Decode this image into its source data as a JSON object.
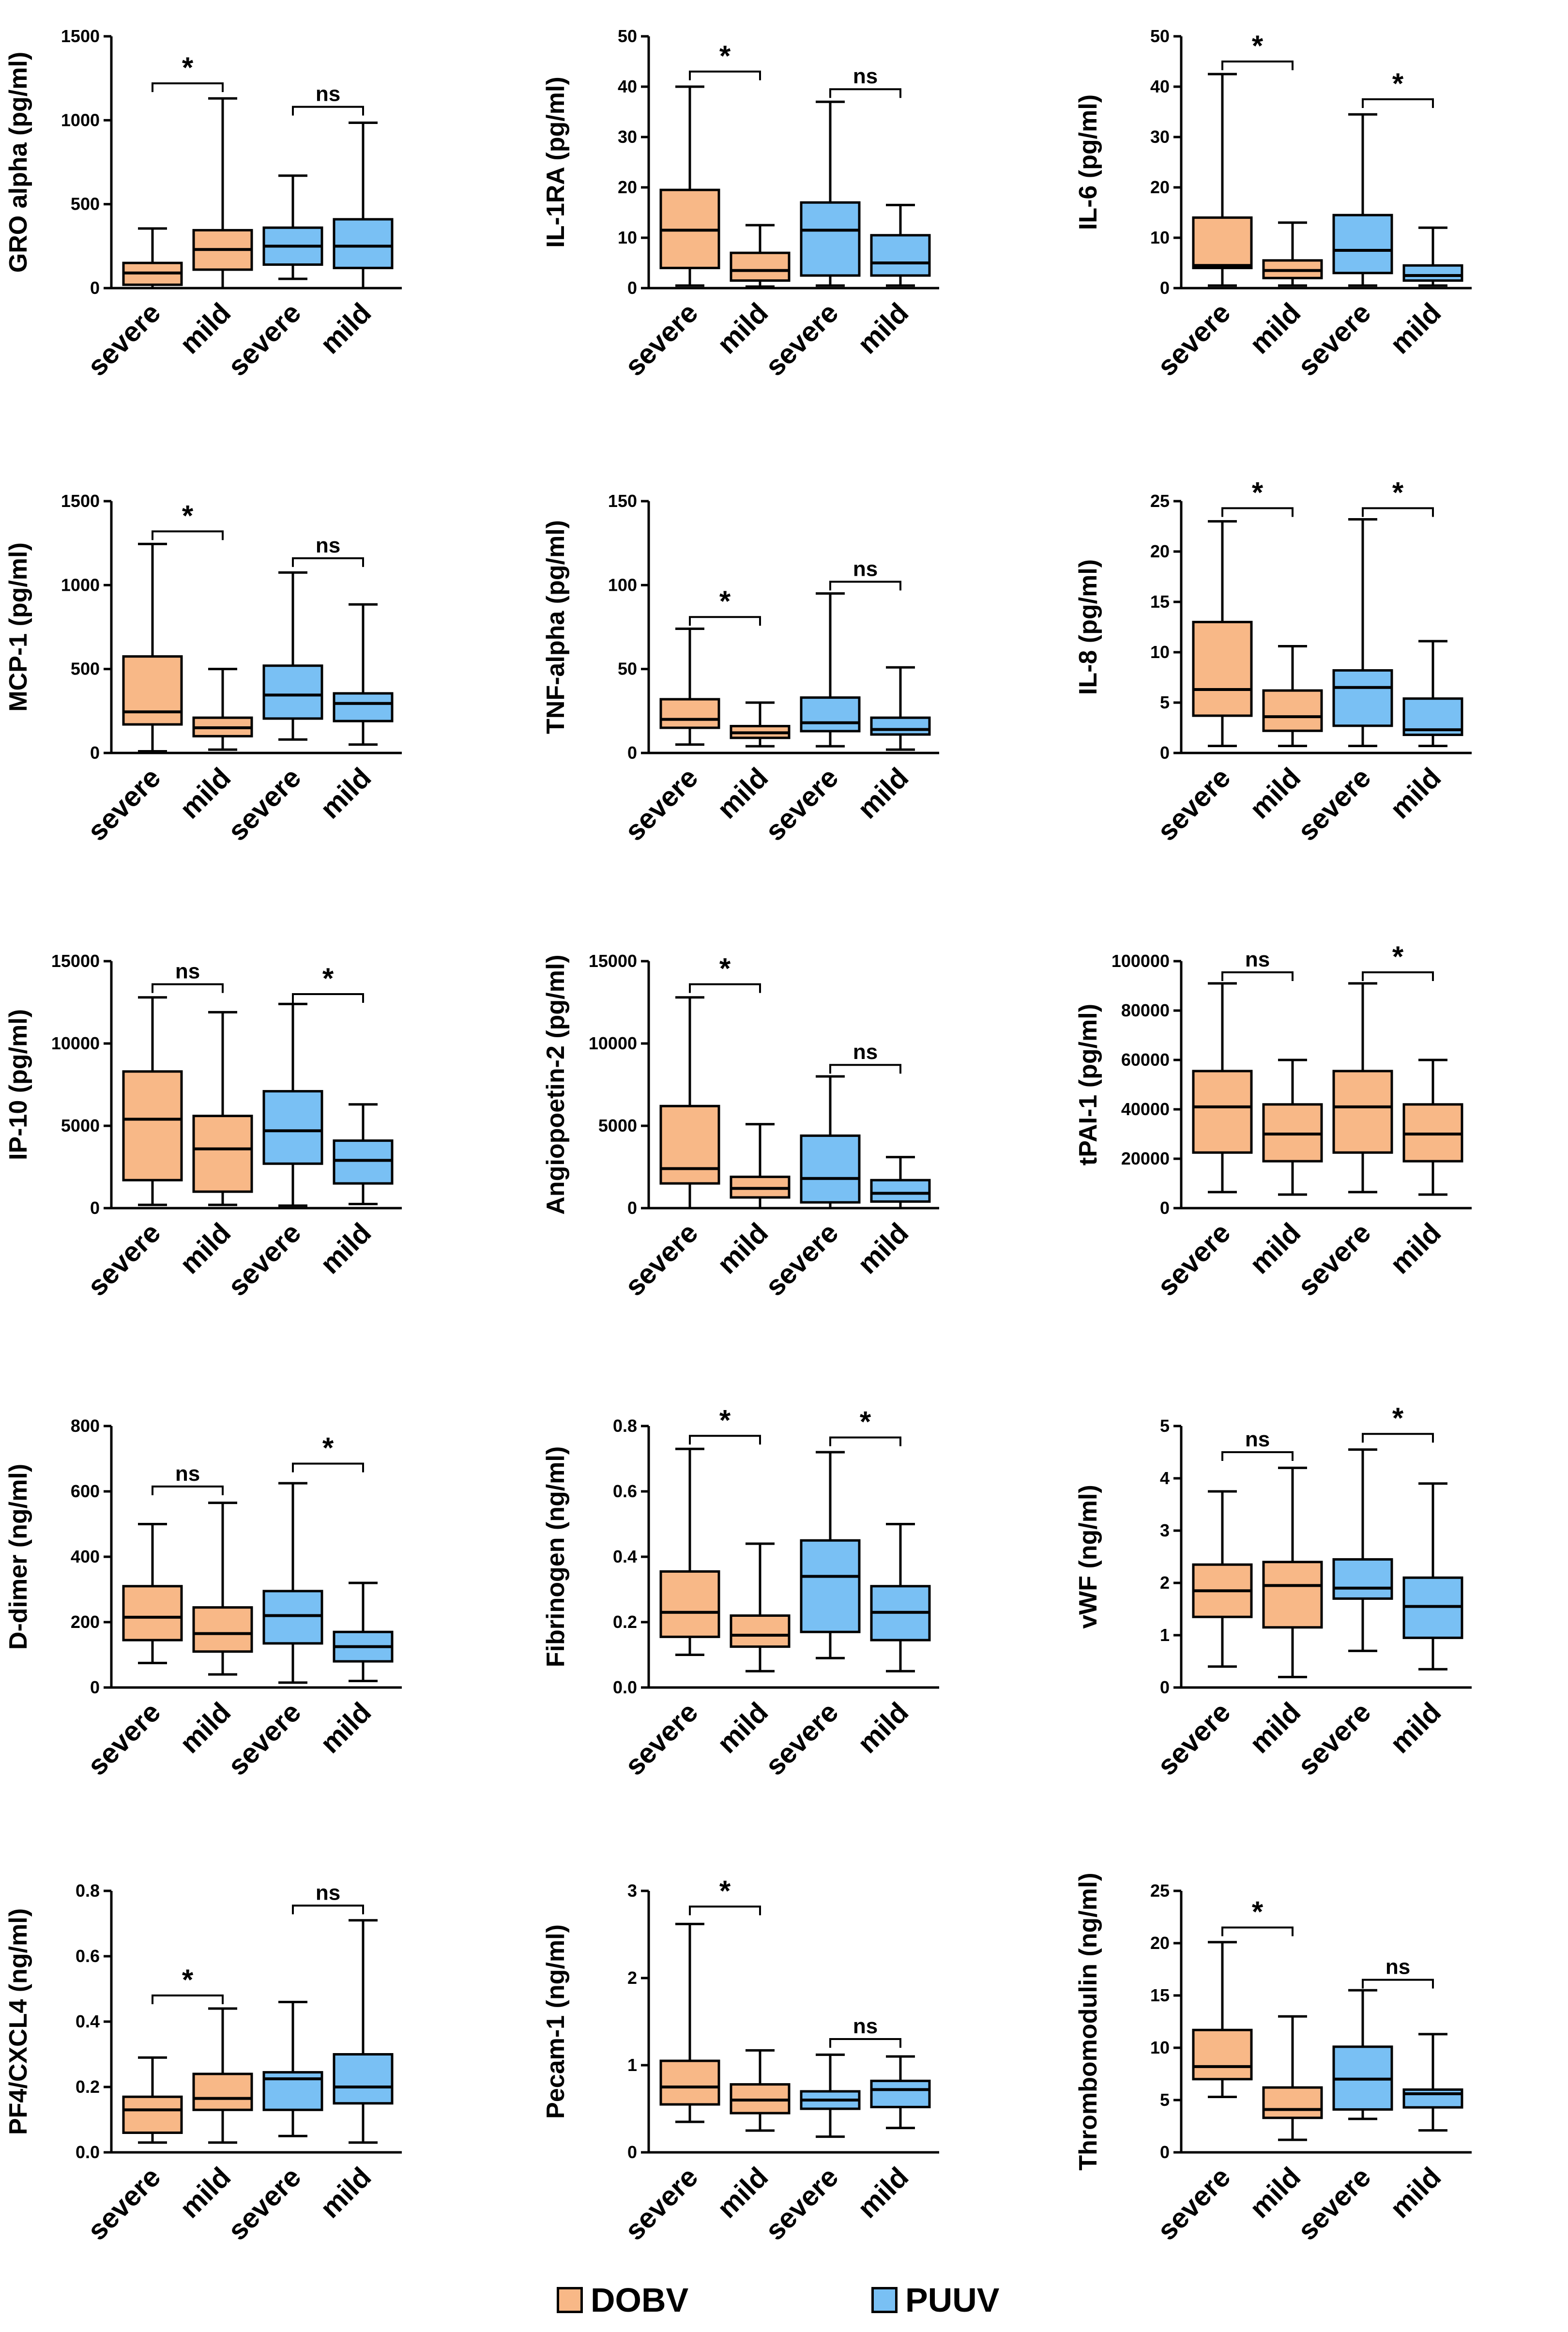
{
  "legend": {
    "dobv_label": "DOBV",
    "dobv_color": "#F8B887",
    "puuv_label": "PUUV",
    "puuv_color": "#79C0F4"
  },
  "chart_data": [
    {
      "type": "box",
      "ylabel": "GRO alpha (pg/ml)",
      "yticks": [
        0,
        500,
        1000,
        1500
      ],
      "ylim": [
        0,
        1500
      ],
      "categories": [
        "severe",
        "mild",
        "severe",
        "mild"
      ],
      "series_of_box": [
        "DOBV",
        "DOBV",
        "PUUV",
        "PUUV"
      ],
      "boxes": [
        {
          "min": 0,
          "q1": 20,
          "median": 90,
          "q3": 150,
          "max": 355
        },
        {
          "min": 0,
          "q1": 110,
          "median": 230,
          "q3": 345,
          "max": 1130
        },
        {
          "min": 55,
          "q1": 140,
          "median": 250,
          "q3": 360,
          "max": 670
        },
        {
          "min": 0,
          "q1": 120,
          "median": 250,
          "q3": 410,
          "max": 985
        }
      ],
      "comparisons": [
        {
          "from": 0,
          "to": 1,
          "label": "*",
          "y": 1220
        },
        {
          "from": 2,
          "to": 3,
          "label": "ns",
          "y": 1080
        }
      ]
    },
    {
      "type": "box",
      "ylabel": "IL-1RA (pg/ml)",
      "yticks": [
        0,
        10,
        20,
        30,
        40,
        50
      ],
      "ylim": [
        0,
        50
      ],
      "categories": [
        "severe",
        "mild",
        "severe",
        "mild"
      ],
      "series_of_box": [
        "DOBV",
        "DOBV",
        "PUUV",
        "PUUV"
      ],
      "boxes": [
        {
          "min": 0.5,
          "q1": 4,
          "median": 11.5,
          "q3": 19.5,
          "max": 40
        },
        {
          "min": 0.3,
          "q1": 1.5,
          "median": 3.5,
          "q3": 7,
          "max": 12.5
        },
        {
          "min": 0.5,
          "q1": 2.5,
          "median": 11.5,
          "q3": 17,
          "max": 37
        },
        {
          "min": 0.5,
          "q1": 2.5,
          "median": 5,
          "q3": 10.5,
          "max": 16.5
        }
      ],
      "comparisons": [
        {
          "from": 0,
          "to": 1,
          "label": "*",
          "y": 43
        },
        {
          "from": 2,
          "to": 3,
          "label": "ns",
          "y": 39.5
        }
      ]
    },
    {
      "type": "box",
      "ylabel": "IL-6 (pg/ml)",
      "yticks": [
        0,
        10,
        20,
        30,
        40,
        50
      ],
      "ylim": [
        0,
        50
      ],
      "categories": [
        "severe",
        "mild",
        "severe",
        "mild"
      ],
      "series_of_box": [
        "DOBV",
        "DOBV",
        "PUUV",
        "PUUV"
      ],
      "boxes": [
        {
          "min": 0.5,
          "q1": 4,
          "median": 4.5,
          "q3": 14,
          "max": 42.5
        },
        {
          "min": 0.5,
          "q1": 2,
          "median": 3.5,
          "q3": 5.5,
          "max": 13
        },
        {
          "min": 0.5,
          "q1": 3,
          "median": 7.5,
          "q3": 14.5,
          "max": 34.5
        },
        {
          "min": 0.5,
          "q1": 1.5,
          "median": 2.5,
          "q3": 4.5,
          "max": 12
        }
      ],
      "comparisons": [
        {
          "from": 0,
          "to": 1,
          "label": "*",
          "y": 45
        },
        {
          "from": 2,
          "to": 3,
          "label": "*",
          "y": 37.5
        }
      ]
    },
    {
      "type": "box",
      "ylabel": "MCP-1 (pg/ml)",
      "yticks": [
        0,
        500,
        1000,
        1500
      ],
      "ylim": [
        0,
        1500
      ],
      "categories": [
        "severe",
        "mild",
        "severe",
        "mild"
      ],
      "series_of_box": [
        "DOBV",
        "DOBV",
        "PUUV",
        "PUUV"
      ],
      "boxes": [
        {
          "min": 10,
          "q1": 170,
          "median": 245,
          "q3": 575,
          "max": 1245
        },
        {
          "min": 20,
          "q1": 100,
          "median": 150,
          "q3": 210,
          "max": 500
        },
        {
          "min": 80,
          "q1": 205,
          "median": 345,
          "q3": 520,
          "max": 1075
        },
        {
          "min": 50,
          "q1": 190,
          "median": 295,
          "q3": 355,
          "max": 885
        }
      ],
      "comparisons": [
        {
          "from": 0,
          "to": 1,
          "label": "*",
          "y": 1320
        },
        {
          "from": 2,
          "to": 3,
          "label": "ns",
          "y": 1160
        }
      ]
    },
    {
      "type": "box",
      "ylabel": "TNF-alpha (pg/ml)",
      "yticks": [
        0,
        50,
        100,
        150
      ],
      "ylim": [
        0,
        150
      ],
      "categories": [
        "severe",
        "mild",
        "severe",
        "mild"
      ],
      "series_of_box": [
        "DOBV",
        "DOBV",
        "PUUV",
        "PUUV"
      ],
      "boxes": [
        {
          "min": 5,
          "q1": 15,
          "median": 20,
          "q3": 32,
          "max": 74
        },
        {
          "min": 4,
          "q1": 9,
          "median": 12,
          "q3": 16,
          "max": 30
        },
        {
          "min": 4,
          "q1": 13,
          "median": 18,
          "q3": 33,
          "max": 95
        },
        {
          "min": 2,
          "q1": 11,
          "median": 14,
          "q3": 21,
          "max": 51
        }
      ],
      "comparisons": [
        {
          "from": 0,
          "to": 1,
          "label": "*",
          "y": 81
        },
        {
          "from": 2,
          "to": 3,
          "label": "ns",
          "y": 102
        }
      ]
    },
    {
      "type": "box",
      "ylabel": "IL-8 (pg/ml)",
      "yticks": [
        0,
        5,
        10,
        15,
        20,
        25
      ],
      "ylim": [
        0,
        25
      ],
      "categories": [
        "severe",
        "mild",
        "severe",
        "mild"
      ],
      "series_of_box": [
        "DOBV",
        "DOBV",
        "PUUV",
        "PUUV"
      ],
      "boxes": [
        {
          "min": 0.7,
          "q1": 3.7,
          "median": 6.3,
          "q3": 13,
          "max": 23
        },
        {
          "min": 0.7,
          "q1": 2.2,
          "median": 3.6,
          "q3": 6.2,
          "max": 10.6
        },
        {
          "min": 0.7,
          "q1": 2.7,
          "median": 6.5,
          "q3": 8.2,
          "max": 23.2
        },
        {
          "min": 0.7,
          "q1": 1.8,
          "median": 2.3,
          "q3": 5.4,
          "max": 11.1
        }
      ],
      "comparisons": [
        {
          "from": 0,
          "to": 1,
          "label": "*",
          "y": 24.3
        },
        {
          "from": 2,
          "to": 3,
          "label": "*",
          "y": 24.3
        }
      ]
    },
    {
      "type": "box",
      "ylabel": "IP-10 (pg/ml)",
      "yticks": [
        0,
        5000,
        10000,
        15000
      ],
      "ylim": [
        0,
        15000
      ],
      "categories": [
        "severe",
        "mild",
        "severe",
        "mild"
      ],
      "series_of_box": [
        "DOBV",
        "DOBV",
        "PUUV",
        "PUUV"
      ],
      "boxes": [
        {
          "min": 200,
          "q1": 1700,
          "median": 5400,
          "q3": 8300,
          "max": 12800
        },
        {
          "min": 200,
          "q1": 1000,
          "median": 3600,
          "q3": 5600,
          "max": 11900
        },
        {
          "min": 150,
          "q1": 2700,
          "median": 4700,
          "q3": 7100,
          "max": 12400
        },
        {
          "min": 250,
          "q1": 1500,
          "median": 2900,
          "q3": 4100,
          "max": 6300
        }
      ],
      "comparisons": [
        {
          "from": 0,
          "to": 1,
          "label": "ns",
          "y": 13600
        },
        {
          "from": 2,
          "to": 3,
          "label": "*",
          "y": 13000
        }
      ]
    },
    {
      "type": "box",
      "ylabel": "Angiopoetin-2 (pg/ml)",
      "yticks": [
        0,
        5000,
        10000,
        15000
      ],
      "ylim": [
        0,
        15000
      ],
      "categories": [
        "severe",
        "mild",
        "severe",
        "mild"
      ],
      "series_of_box": [
        "DOBV",
        "DOBV",
        "PUUV",
        "PUUV"
      ],
      "boxes": [
        {
          "min": 0,
          "q1": 1500,
          "median": 2400,
          "q3": 6200,
          "max": 12800
        },
        {
          "min": 0,
          "q1": 650,
          "median": 1200,
          "q3": 1900,
          "max": 5100
        },
        {
          "min": 0,
          "q1": 350,
          "median": 1800,
          "q3": 4400,
          "max": 8000
        },
        {
          "min": 0,
          "q1": 400,
          "median": 900,
          "q3": 1700,
          "max": 3100
        }
      ],
      "comparisons": [
        {
          "from": 0,
          "to": 1,
          "label": "*",
          "y": 13600
        },
        {
          "from": 2,
          "to": 3,
          "label": "ns",
          "y": 8700
        }
      ]
    },
    {
      "type": "box",
      "ylabel": "tPAI-1 (pg/ml)",
      "yticks": [
        0,
        20000,
        40000,
        60000,
        80000,
        100000
      ],
      "ylim": [
        0,
        100000
      ],
      "categories": [
        "severe",
        "mild",
        "severe",
        "mild"
      ],
      "series_of_box": [
        "DOBV",
        "DOBV",
        "DOBV",
        "DOBV"
      ],
      "boxes": [
        {
          "min": 6500,
          "q1": 22500,
          "median": 41000,
          "q3": 55500,
          "max": 91000
        },
        {
          "min": 5500,
          "q1": 19000,
          "median": 30000,
          "q3": 42000,
          "max": 60000
        },
        {
          "min": 6500,
          "q1": 22500,
          "median": 41000,
          "q3": 55500,
          "max": 91000
        },
        {
          "min": 5500,
          "q1": 19000,
          "median": 30000,
          "q3": 42000,
          "max": 60000
        }
      ],
      "comparisons": [
        {
          "from": 0,
          "to": 1,
          "label": "ns",
          "y": 95500
        },
        {
          "from": 2,
          "to": 3,
          "label": "*",
          "y": 95500
        }
      ]
    },
    {
      "type": "box",
      "ylabel": "D-dimer (ng/ml)",
      "yticks": [
        0,
        200,
        400,
        600,
        800
      ],
      "ylim": [
        0,
        800
      ],
      "categories": [
        "severe",
        "mild",
        "severe",
        "mild"
      ],
      "series_of_box": [
        "DOBV",
        "DOBV",
        "PUUV",
        "PUUV"
      ],
      "boxes": [
        {
          "min": 75,
          "q1": 145,
          "median": 215,
          "q3": 310,
          "max": 500
        },
        {
          "min": 40,
          "q1": 110,
          "median": 165,
          "q3": 245,
          "max": 565
        },
        {
          "min": 15,
          "q1": 135,
          "median": 220,
          "q3": 295,
          "max": 625
        },
        {
          "min": 20,
          "q1": 80,
          "median": 125,
          "q3": 170,
          "max": 320
        }
      ],
      "comparisons": [
        {
          "from": 0,
          "to": 1,
          "label": "ns",
          "y": 615
        },
        {
          "from": 2,
          "to": 3,
          "label": "*",
          "y": 685
        }
      ]
    },
    {
      "type": "box",
      "ylabel": "Fibrinogen (ng/ml)",
      "yticks": [
        0.0,
        0.2,
        0.4,
        0.6,
        0.8
      ],
      "ylim": [
        0,
        0.8
      ],
      "categories": [
        "severe",
        "mild",
        "severe",
        "mild"
      ],
      "series_of_box": [
        "DOBV",
        "DOBV",
        "PUUV",
        "PUUV"
      ],
      "boxes": [
        {
          "min": 0.1,
          "q1": 0.155,
          "median": 0.23,
          "q3": 0.355,
          "max": 0.73
        },
        {
          "min": 0.05,
          "q1": 0.125,
          "median": 0.16,
          "q3": 0.22,
          "max": 0.44
        },
        {
          "min": 0.09,
          "q1": 0.17,
          "median": 0.34,
          "q3": 0.45,
          "max": 0.72
        },
        {
          "min": 0.05,
          "q1": 0.145,
          "median": 0.23,
          "q3": 0.31,
          "max": 0.5
        }
      ],
      "comparisons": [
        {
          "from": 0,
          "to": 1,
          "label": "*",
          "y": 0.77
        },
        {
          "from": 2,
          "to": 3,
          "label": "*",
          "y": 0.765
        }
      ]
    },
    {
      "type": "box",
      "ylabel": "vWF (ng/ml)",
      "yticks": [
        0,
        1,
        2,
        3,
        4,
        5
      ],
      "ylim": [
        0,
        5
      ],
      "categories": [
        "severe",
        "mild",
        "severe",
        "mild"
      ],
      "series_of_box": [
        "DOBV",
        "DOBV",
        "PUUV",
        "PUUV"
      ],
      "boxes": [
        {
          "min": 0.4,
          "q1": 1.35,
          "median": 1.85,
          "q3": 2.35,
          "max": 3.75
        },
        {
          "min": 0.2,
          "q1": 1.15,
          "median": 1.95,
          "q3": 2.4,
          "max": 4.2
        },
        {
          "min": 0.7,
          "q1": 1.7,
          "median": 1.9,
          "q3": 2.45,
          "max": 4.55
        },
        {
          "min": 0.35,
          "q1": 0.95,
          "median": 1.55,
          "q3": 2.1,
          "max": 3.9
        }
      ],
      "comparisons": [
        {
          "from": 0,
          "to": 1,
          "label": "ns",
          "y": 4.5
        },
        {
          "from": 2,
          "to": 3,
          "label": "*",
          "y": 4.85
        }
      ]
    },
    {
      "type": "box",
      "ylabel": "PF4/CXCL4 (ng/ml)",
      "yticks": [
        0.0,
        0.2,
        0.4,
        0.6,
        0.8
      ],
      "ylim": [
        0,
        0.8
      ],
      "categories": [
        "severe",
        "mild",
        "severe",
        "mild"
      ],
      "series_of_box": [
        "DOBV",
        "DOBV",
        "PUUV",
        "PUUV"
      ],
      "boxes": [
        {
          "min": 0.03,
          "q1": 0.06,
          "median": 0.13,
          "q3": 0.17,
          "max": 0.29
        },
        {
          "min": 0.03,
          "q1": 0.13,
          "median": 0.165,
          "q3": 0.24,
          "max": 0.44
        },
        {
          "min": 0.05,
          "q1": 0.13,
          "median": 0.225,
          "q3": 0.245,
          "max": 0.46
        },
        {
          "min": 0.03,
          "q1": 0.15,
          "median": 0.2,
          "q3": 0.3,
          "max": 0.71
        }
      ],
      "comparisons": [
        {
          "from": 0,
          "to": 1,
          "label": "*",
          "y": 0.48
        },
        {
          "from": 2,
          "to": 3,
          "label": "ns",
          "y": 0.755
        }
      ]
    },
    {
      "type": "box",
      "ylabel": "Pecam-1 (ng/ml)",
      "yticks": [
        0,
        1,
        2,
        3
      ],
      "ylim": [
        0,
        3
      ],
      "categories": [
        "severe",
        "mild",
        "severe",
        "mild"
      ],
      "series_of_box": [
        "DOBV",
        "DOBV",
        "PUUV",
        "PUUV"
      ],
      "boxes": [
        {
          "min": 0.35,
          "q1": 0.55,
          "median": 0.75,
          "q3": 1.05,
          "max": 2.62
        },
        {
          "min": 0.25,
          "q1": 0.45,
          "median": 0.6,
          "q3": 0.78,
          "max": 1.17
        },
        {
          "min": 0.18,
          "q1": 0.5,
          "median": 0.6,
          "q3": 0.7,
          "max": 1.12
        },
        {
          "min": 0.28,
          "q1": 0.52,
          "median": 0.72,
          "q3": 0.82,
          "max": 1.1
        }
      ],
      "comparisons": [
        {
          "from": 0,
          "to": 1,
          "label": "*",
          "y": 2.82
        },
        {
          "from": 2,
          "to": 3,
          "label": "ns",
          "y": 1.3
        }
      ]
    },
    {
      "type": "box",
      "ylabel": "Thrombomodulin (ng/ml)",
      "yticks": [
        0,
        5,
        10,
        15,
        20,
        25
      ],
      "ylim": [
        0,
        25
      ],
      "categories": [
        "severe",
        "mild",
        "severe",
        "mild"
      ],
      "series_of_box": [
        "DOBV",
        "DOBV",
        "PUUV",
        "PUUV"
      ],
      "boxes": [
        {
          "min": 5.3,
          "q1": 7,
          "median": 8.2,
          "q3": 11.7,
          "max": 20.1
        },
        {
          "min": 1.2,
          "q1": 3.3,
          "median": 4.1,
          "q3": 6.2,
          "max": 13
        },
        {
          "min": 3.2,
          "q1": 4.1,
          "median": 7,
          "q3": 10.1,
          "max": 15.5
        },
        {
          "min": 2.1,
          "q1": 4.3,
          "median": 5.6,
          "q3": 6,
          "max": 11.3
        }
      ],
      "comparisons": [
        {
          "from": 0,
          "to": 1,
          "label": "*",
          "y": 21.5
        },
        {
          "from": 2,
          "to": 3,
          "label": "ns",
          "y": 16.5
        }
      ]
    }
  ]
}
